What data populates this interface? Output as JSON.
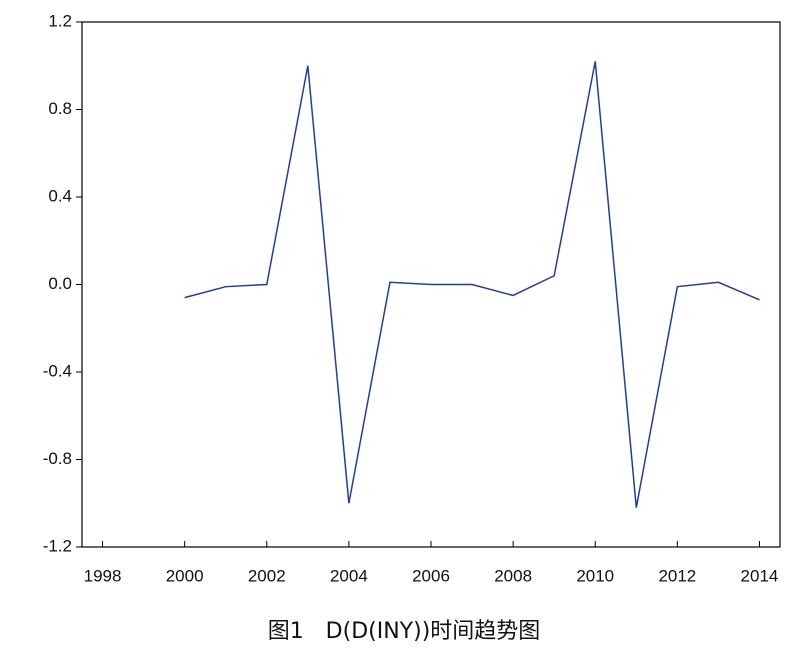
{
  "chart_data": {
    "type": "line",
    "caption": "图1　D(D(INY))时间趋势图",
    "x": [
      2000,
      2001,
      2002,
      2003,
      2004,
      2005,
      2006,
      2007,
      2008,
      2009,
      2010,
      2011,
      2012,
      2013,
      2014
    ],
    "series": [
      {
        "color": "#1f3f9a",
        "values": [
          -0.06,
          -0.01,
          0.0,
          1.0,
          -1.0,
          0.01,
          0.0,
          0.0,
          -0.05,
          0.04,
          1.02,
          -1.02,
          -0.01,
          0.01,
          -0.07
        ]
      }
    ],
    "xlim": [
      1997.5,
      2014.5
    ],
    "xticks": [
      1998,
      2000,
      2002,
      2004,
      2006,
      2008,
      2010,
      2012,
      2014
    ],
    "ylim": [
      -1.2,
      1.2
    ],
    "yticks": [
      -1.2,
      -0.8,
      -0.4,
      {
        "value": 0,
        "label": "0.0"
      },
      0.4,
      0.8,
      1.2
    ],
    "grid": false
  }
}
